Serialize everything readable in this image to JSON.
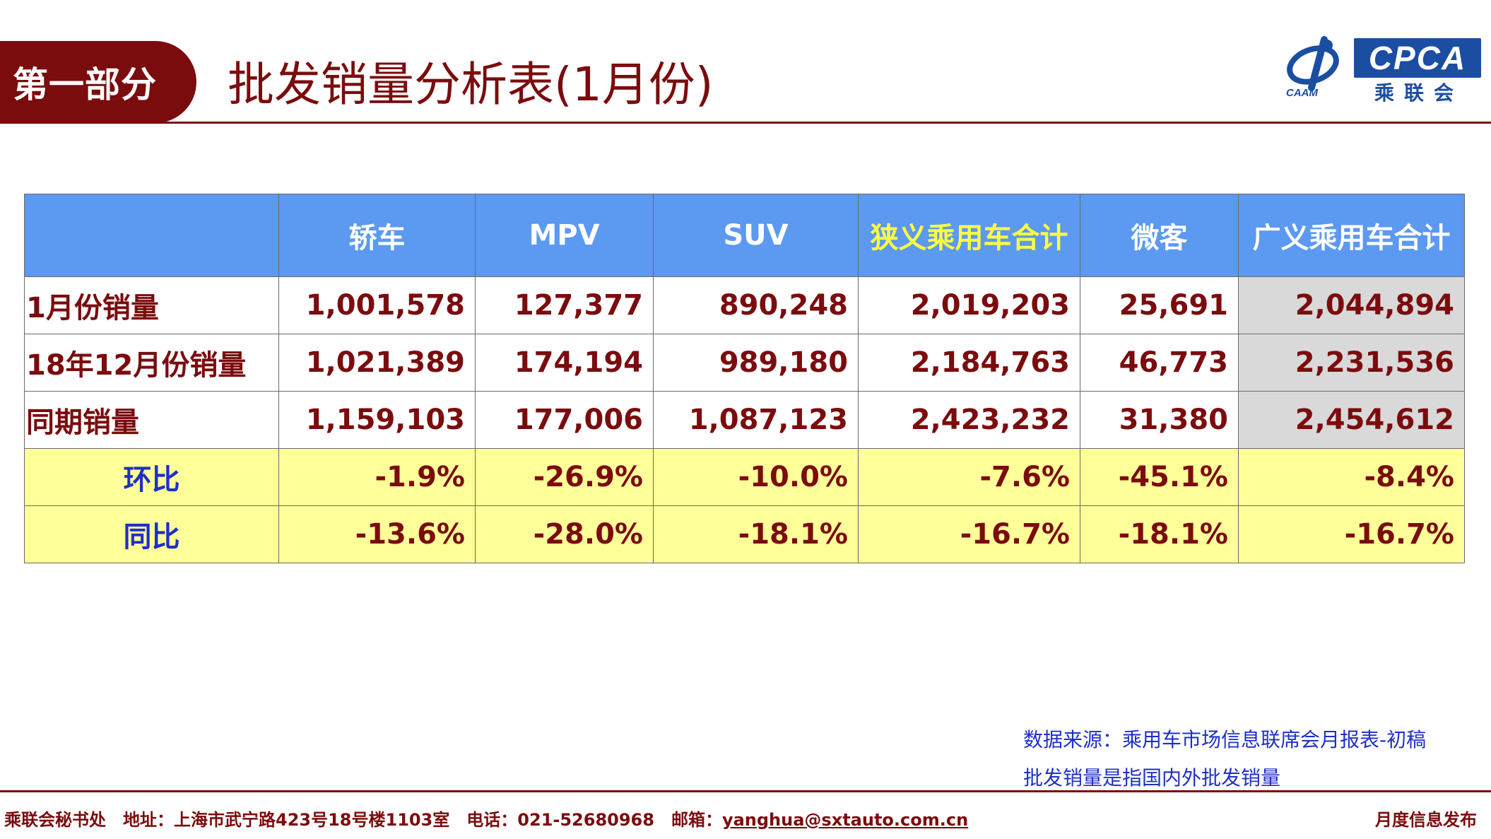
{
  "header": {
    "section_label": "第一部分",
    "title": "批发销量分析表(1月份)",
    "logo_text": "CPCA",
    "logo_subtext": "乘联会",
    "logo_emblem_text": "CAAM"
  },
  "table": {
    "columns": [
      "",
      "轿车",
      "MPV",
      "SUV",
      "狭义乘用车合计",
      "微客",
      "广义乘用车合计"
    ],
    "rows": [
      {
        "label": "1月份销量",
        "values": [
          "1,001,578",
          "127,377",
          "890,248",
          "2,019,203",
          "25,691",
          "2,044,894"
        ]
      },
      {
        "label": "18年12月份销量",
        "values": [
          "1,021,389",
          "174,194",
          "989,180",
          "2,184,763",
          "46,773",
          "2,231,536"
        ]
      },
      {
        "label": "同期销量",
        "values": [
          "1,159,103",
          "177,006",
          "1,087,123",
          "2,423,232",
          "31,380",
          "2,454,612"
        ]
      },
      {
        "label": "环比",
        "values": [
          "-1.9%",
          "-26.9%",
          "-10.0%",
          "-7.6%",
          "-45.1%",
          "-8.4%"
        ]
      },
      {
        "label": "同比",
        "values": [
          "-13.6%",
          "-28.0%",
          "-18.1%",
          "-16.7%",
          "-18.1%",
          "-16.7%"
        ]
      }
    ]
  },
  "notes": {
    "source": "数据来源：乘用车市场信息联席会月报表-初稿",
    "definition": "批发销量是指国内外批发销量"
  },
  "footer": {
    "left": "乘联会秘书处　地址：上海市武宁路423号18号楼1103室　电话：021-52680968　邮箱：",
    "email": "yanghua@sxtauto.com.cn",
    "right": "月度信息发布"
  },
  "colors": {
    "brand_red": "#7b0c0e",
    "header_blue": "#5c99f0",
    "highlight_yellow": "#ffff99",
    "label_blue": "#1f2fc8",
    "logo_blue": "#1b4ea2"
  }
}
